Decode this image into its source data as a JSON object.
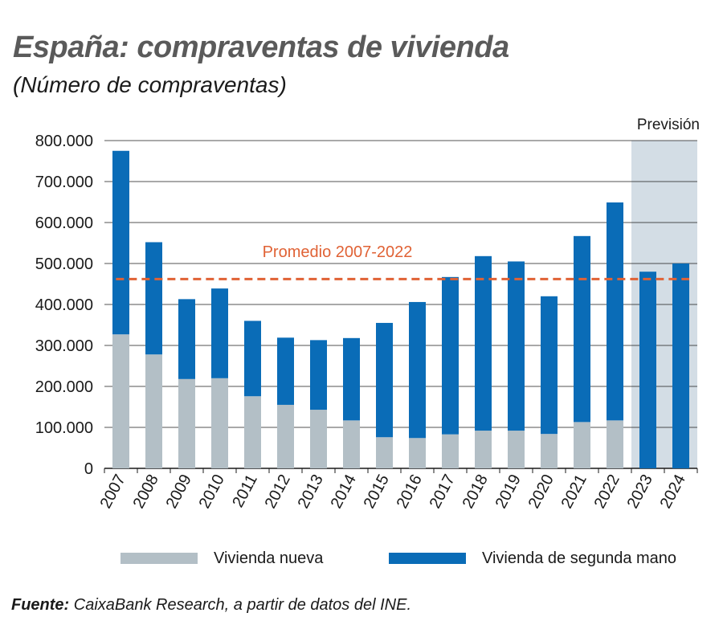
{
  "header": {
    "title": "España: compraventas de vivienda",
    "subtitle": "(Número de compraventas)"
  },
  "source": {
    "label": "Fuente:",
    "text": "CaixaBank Research, a partir de datos del INE."
  },
  "colors": {
    "new": "#b3bfc6",
    "used": "#0a6cb7",
    "average": "#e06235",
    "forecast_band": "#d3dde5",
    "grid": "#1a1a1a"
  },
  "chart_data": {
    "type": "bar",
    "stacked": true,
    "categories": [
      "2007",
      "2008",
      "2009",
      "2010",
      "2011",
      "2012",
      "2013",
      "2014",
      "2015",
      "2016",
      "2017",
      "2018",
      "2019",
      "2020",
      "2021",
      "2022",
      "2023",
      "2024"
    ],
    "series": [
      {
        "name": "Vivienda nueva",
        "values": [
          327000,
          278000,
          218000,
          220000,
          176000,
          155000,
          143000,
          117000,
          76000,
          74000,
          83000,
          92000,
          92000,
          84000,
          113000,
          117000,
          0,
          0
        ]
      },
      {
        "name": "Vivienda de segunda mano",
        "values": [
          448000,
          274000,
          195000,
          219000,
          184000,
          164000,
          170000,
          201000,
          279000,
          332000,
          384000,
          426000,
          413000,
          336000,
          454000,
          532000,
          480000,
          500000
        ]
      }
    ],
    "yaxis": {
      "min": 0,
      "max": 800000,
      "ticks": [
        0,
        100000,
        200000,
        300000,
        400000,
        500000,
        600000,
        700000,
        800000
      ],
      "tick_labels": [
        "0",
        "100.000",
        "200.000",
        "300.000",
        "400.000",
        "500.000",
        "600.000",
        "700.000",
        "800.000"
      ]
    },
    "average": {
      "label": "Promedio 2007-2022",
      "value": 462000
    },
    "forecast": {
      "label": "Previsión",
      "categories": [
        "2023",
        "2024"
      ]
    },
    "grid": true,
    "legend": "bottom"
  }
}
